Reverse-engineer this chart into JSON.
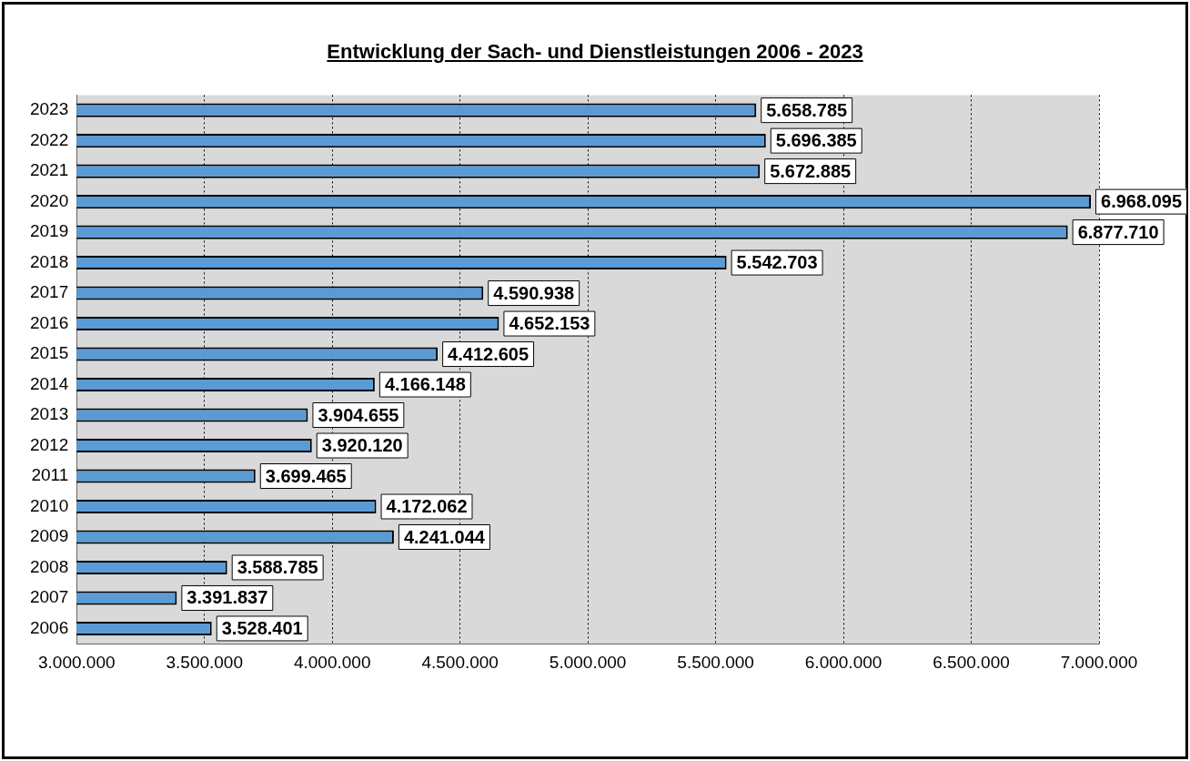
{
  "chart_data": {
    "type": "bar",
    "orientation": "horizontal",
    "title": "Entwicklung der Sach- und Dienstleistungen 2006 - 2023",
    "categories": [
      "2023",
      "2022",
      "2021",
      "2020",
      "2019",
      "2018",
      "2017",
      "2016",
      "2015",
      "2014",
      "2013",
      "2012",
      "2011",
      "2010",
      "2009",
      "2008",
      "2007",
      "2006"
    ],
    "values": [
      5658785,
      5696385,
      5672885,
      6968095,
      6877710,
      5542703,
      4590938,
      4652153,
      4412605,
      4166148,
      3904655,
      3920120,
      3699465,
      4172062,
      4241044,
      3588785,
      3391837,
      3528401
    ],
    "value_labels": [
      "5.658.785",
      "5.696.385",
      "5.672.885",
      "6.968.095",
      "6.877.710",
      "5.542.703",
      "4.590.938",
      "4.652.153",
      "4.412.605",
      "4.166.148",
      "3.904.655",
      "3.920.120",
      "3.699.465",
      "4.172.062",
      "4.241.044",
      "3.588.785",
      "3.391.837",
      "3.528.401"
    ],
    "color": "#5b9bd5",
    "xlim": [
      3000000,
      7000000
    ],
    "xticks": [
      {
        "value": 3000000,
        "label": "3.000.000"
      },
      {
        "value": 3500000,
        "label": "3.500.000"
      },
      {
        "value": 4000000,
        "label": "4.000.000"
      },
      {
        "value": 4500000,
        "label": "4.500.000"
      },
      {
        "value": 5000000,
        "label": "5.000.000"
      },
      {
        "value": 5500000,
        "label": "5.500.000"
      },
      {
        "value": 6000000,
        "label": "6.000.000"
      },
      {
        "value": 6500000,
        "label": "6.500.000"
      },
      {
        "value": 7000000,
        "label": "7.000.000"
      }
    ],
    "grid": "x"
  }
}
